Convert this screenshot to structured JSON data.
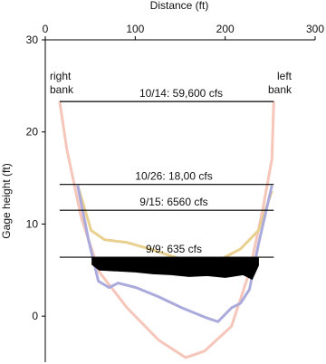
{
  "chart_data": {
    "type": "line",
    "x_label": "Distance (ft)",
    "y_label": "Gage height (ft)",
    "xlim": [
      0,
      300
    ],
    "xticks": [
      0,
      100,
      200,
      300
    ],
    "ylim": [
      -5,
      30
    ],
    "yticks": [
      0,
      10,
      20,
      30
    ],
    "series": [
      {
        "color": "#f5c6b9",
        "x": [
          16,
          24,
          40,
          60,
          91,
          126,
          156,
          177,
          207,
          227,
          242,
          252,
          254
        ],
        "values": [
          23.3,
          18.1,
          10.7,
          4.8,
          0.9,
          -2.6,
          -4.5,
          -3.8,
          -1.1,
          4.8,
          11.7,
          17.1,
          23.3
        ]
      },
      {
        "color": "#e9d08f",
        "x": [
          36,
          51,
          66,
          91,
          116,
          141,
          167,
          192,
          217,
          237,
          252
        ],
        "values": [
          14.2,
          9.3,
          8.3,
          8.0,
          7.3,
          6.5,
          5.8,
          6.0,
          7.3,
          9.3,
          13.6
        ]
      },
      {
        "color": "#aaaadc",
        "x": [
          36,
          48,
          59,
          71,
          81,
          101,
          126,
          152,
          177,
          192,
          207,
          217,
          227,
          237,
          252
        ],
        "values": [
          14.2,
          8.3,
          3.8,
          3.1,
          3.6,
          3.1,
          2.1,
          0.9,
          -0.1,
          -0.6,
          0.9,
          1.4,
          2.9,
          7.8,
          14.2
        ]
      },
      {
        "color": "#000000",
        "fill": true,
        "x": [
          52,
          237,
          237,
          230,
          220,
          200,
          180,
          160,
          140,
          120,
          100,
          80,
          60,
          52
        ],
        "values": [
          6.4,
          6.4,
          5.5,
          4.0,
          4.5,
          4.2,
          4.4,
          4.3,
          4.5,
          4.6,
          4.8,
          4.9,
          5.0,
          5.6
        ]
      }
    ],
    "water_levels": [
      {
        "label": "10/14: 59,600 cfs",
        "value": 23.3,
        "x": [
          16,
          254
        ]
      },
      {
        "label": "10/26: 18,00  cfs",
        "value": 14.3,
        "x": [
          16,
          254
        ]
      },
      {
        "label": "9/15: 6560 cfs",
        "value": 11.5,
        "x": [
          16,
          254
        ]
      },
      {
        "label": "9/9: 635 cfs",
        "value": 6.4,
        "x": [
          16,
          254
        ]
      }
    ],
    "annotations": [
      {
        "text": [
          "right",
          "bank"
        ]
      },
      {
        "text": [
          "left",
          "bank"
        ]
      }
    ]
  }
}
